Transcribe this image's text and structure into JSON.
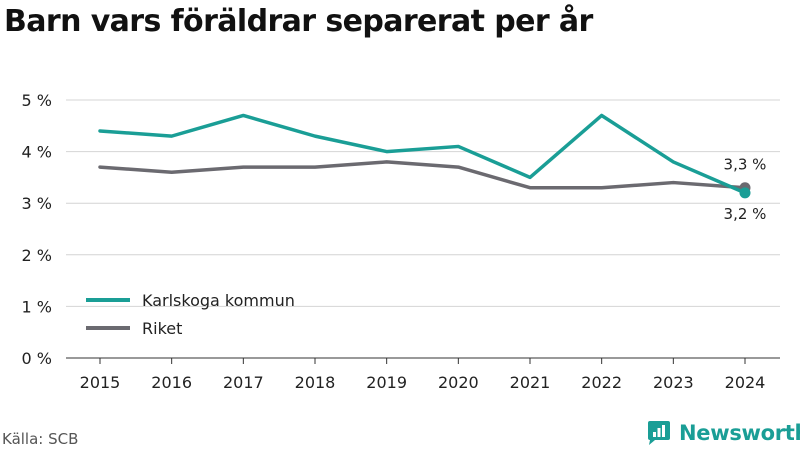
{
  "title": "Barn vars föräldrar separerat per år",
  "source": "Källa: SCB",
  "brand": {
    "name": "Newsworthy",
    "icon": "newsworthy-logo-icon",
    "color": "#1a9e96"
  },
  "chart_data": {
    "type": "line",
    "title": "Barn vars föräldrar separerat per år",
    "x": [
      "2015",
      "2016",
      "2017",
      "2018",
      "2019",
      "2020",
      "2021",
      "2022",
      "2023",
      "2024"
    ],
    "ylim": [
      0,
      5
    ],
    "yticks": [
      "0 %",
      "1 %",
      "2 %",
      "3 %",
      "4 %",
      "5 %"
    ],
    "grid": true,
    "legend_position": "bottom-left",
    "series": [
      {
        "name": "Karlskoga kommun",
        "color": "#1a9e96",
        "values": [
          4.4,
          4.3,
          4.7,
          4.3,
          4.0,
          4.1,
          3.5,
          4.7,
          3.8,
          3.2
        ]
      },
      {
        "name": "Riket",
        "color": "#6b6a70",
        "values": [
          3.7,
          3.6,
          3.7,
          3.7,
          3.8,
          3.7,
          3.3,
          3.3,
          3.4,
          3.3
        ]
      }
    ],
    "annotations": [
      {
        "series": "Riket",
        "x": "2024",
        "text": "3,3 %"
      },
      {
        "series": "Karlskoga kommun",
        "x": "2024",
        "text": "3,2 %"
      }
    ]
  }
}
